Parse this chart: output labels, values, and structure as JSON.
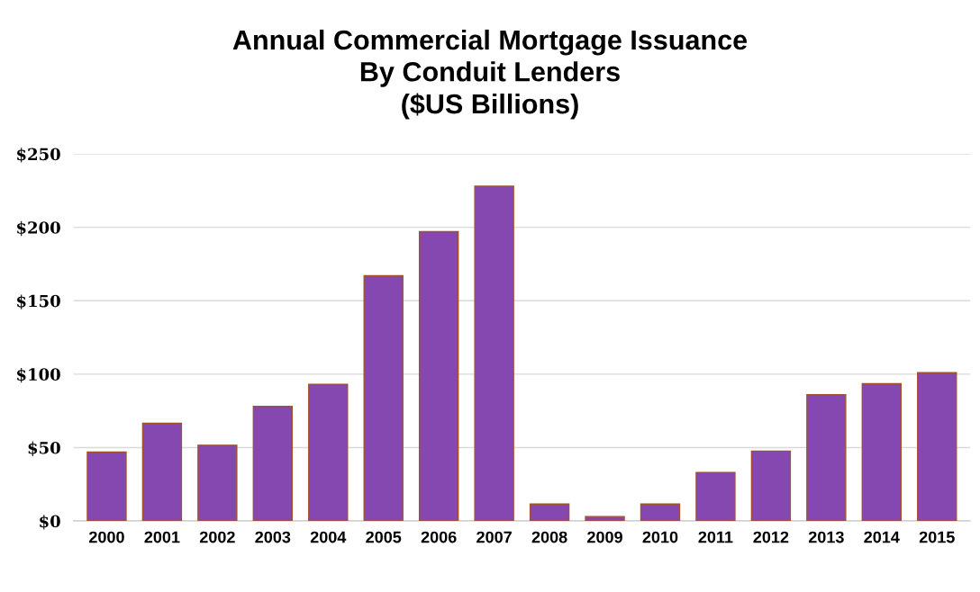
{
  "chart_data": {
    "type": "bar",
    "title": "Annual Commercial Mortgage Issuance\nBy Conduit Lenders\n($US Billions)",
    "categories": [
      "2000",
      "2001",
      "2002",
      "2003",
      "2004",
      "2005",
      "2006",
      "2007",
      "2008",
      "2009",
      "2010",
      "2011",
      "2012",
      "2013",
      "2014",
      "2015"
    ],
    "values": [
      47,
      66.5,
      51.6,
      78,
      93,
      167,
      197,
      228,
      11.5,
      3,
      11.5,
      33,
      47.6,
      86,
      93.5,
      101
    ],
    "color": "#8548b0",
    "ylim": [
      0,
      250
    ],
    "yticks": [
      {
        "value": 0,
        "label": "$0"
      },
      {
        "value": 50,
        "label": "$50"
      },
      {
        "value": 100,
        "label": "$100"
      },
      {
        "value": 150,
        "label": "$150"
      },
      {
        "value": 200,
        "label": "$200"
      },
      {
        "value": 250,
        "label": "$250"
      }
    ],
    "grid": "y"
  }
}
